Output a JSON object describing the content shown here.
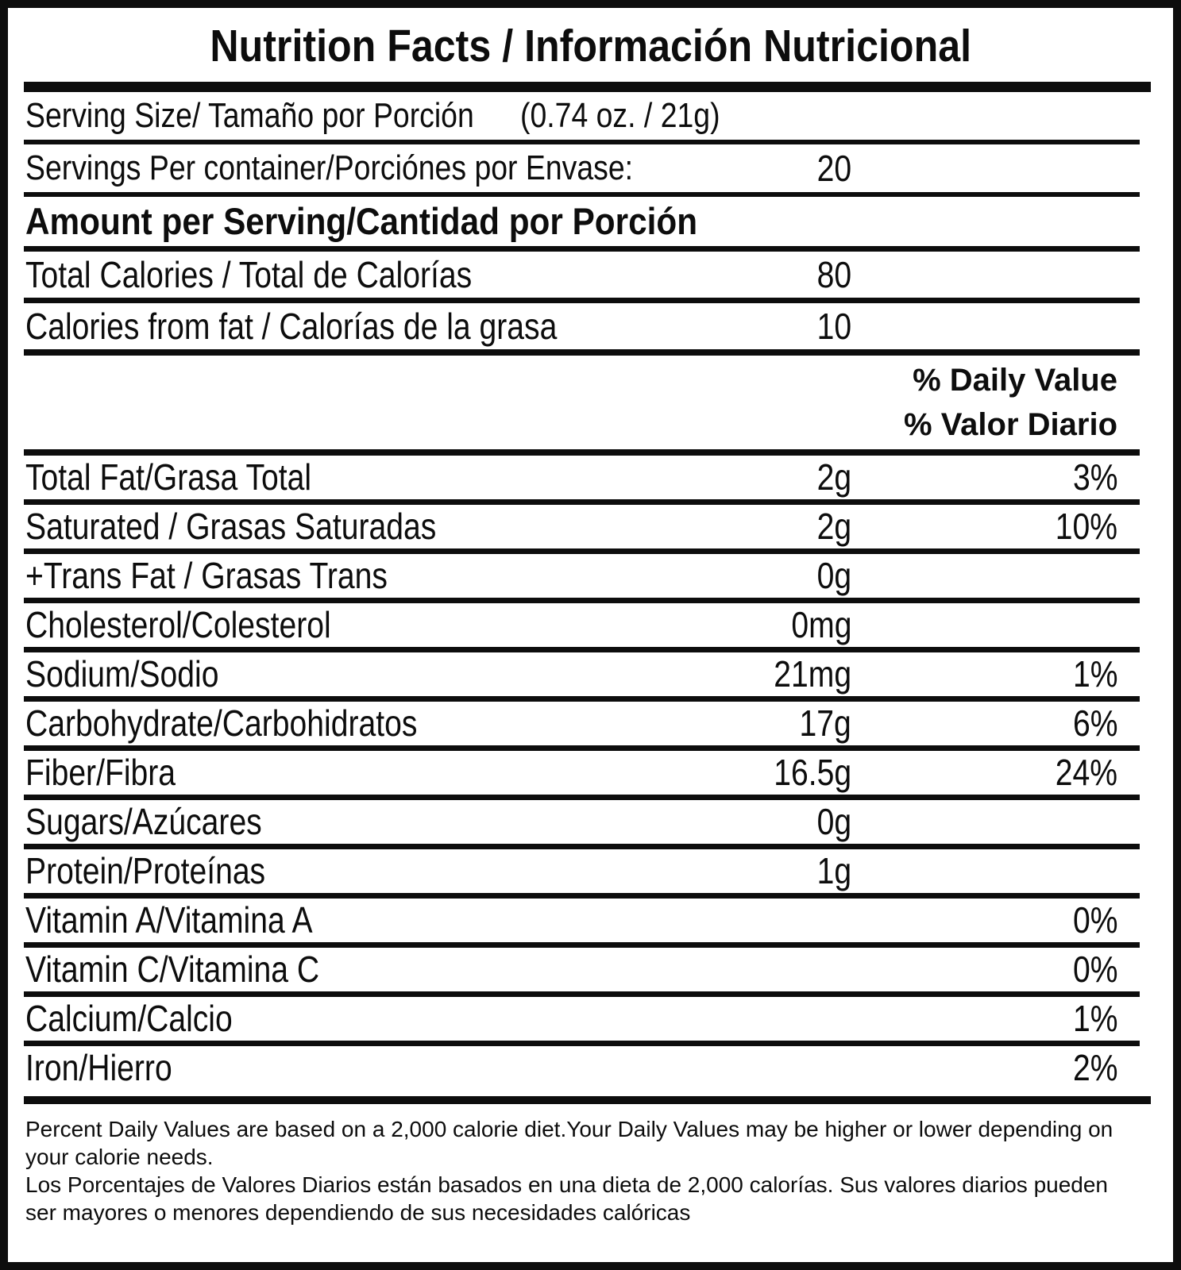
{
  "colors": {
    "ink": "#0d0d0d",
    "paper": "#ffffff"
  },
  "label": {
    "title": "Nutrition Facts / Información Nutricional",
    "serving_size": {
      "label": "Serving Size/ Tamaño por Porción",
      "value": "(0.74 oz. / 21g)"
    },
    "servings_per_container": {
      "label": "Servings Per container/Porciónes por Envase:",
      "value": "20"
    },
    "amount_per_serving_header": "Amount per Serving/Cantidad por Porción",
    "calories": [
      {
        "label": "Total Calories / Total de Calorías",
        "value": "80"
      },
      {
        "label": "Calories from fat / Calorías de la grasa",
        "value": "10"
      }
    ],
    "daily_value_headers": [
      "% Daily Value",
      "% Valor Diario"
    ],
    "nutrients": [
      {
        "label": "Total Fat/Grasa Total",
        "amount": "2g",
        "dv": "3%"
      },
      {
        "label": "Saturated / Grasas Saturadas",
        "amount": "2g",
        "dv": "10%"
      },
      {
        "label": "+Trans Fat / Grasas Trans",
        "amount": "0g",
        "dv": ""
      },
      {
        "label": "Cholesterol/Colesterol",
        "amount": "0mg",
        "dv": ""
      },
      {
        "label": "Sodium/Sodio",
        "amount": "21mg",
        "dv": "1%"
      },
      {
        "label": "Carbohydrate/Carbohidratos",
        "amount": "17g",
        "dv": "6%"
      },
      {
        "label": "Fiber/Fibra",
        "amount": "16.5g",
        "dv": "24%"
      },
      {
        "label": "Sugars/Azúcares",
        "amount": "0g",
        "dv": ""
      },
      {
        "label": "Protein/Proteínas",
        "amount": "1g",
        "dv": ""
      },
      {
        "label": "Vitamin A/Vitamina A",
        "amount": "",
        "dv": "0%"
      },
      {
        "label": "Vitamin C/Vitamina C",
        "amount": "",
        "dv": "0%"
      },
      {
        "label": "Calcium/Calcio",
        "amount": "",
        "dv": "1%"
      },
      {
        "label": "Iron/Hierro",
        "amount": "",
        "dv": "2%"
      }
    ],
    "footnotes": [
      "Percent Daily Values are based on a 2,000 calorie diet.Your Daily Values may be higher or lower depending on your calorie needs.",
      "Los Porcentajes de Valores Diarios están basados en una dieta de 2,000 calorías. Sus valores diarios pueden ser mayores o menores dependiendo de sus necesidades calóricas"
    ]
  }
}
